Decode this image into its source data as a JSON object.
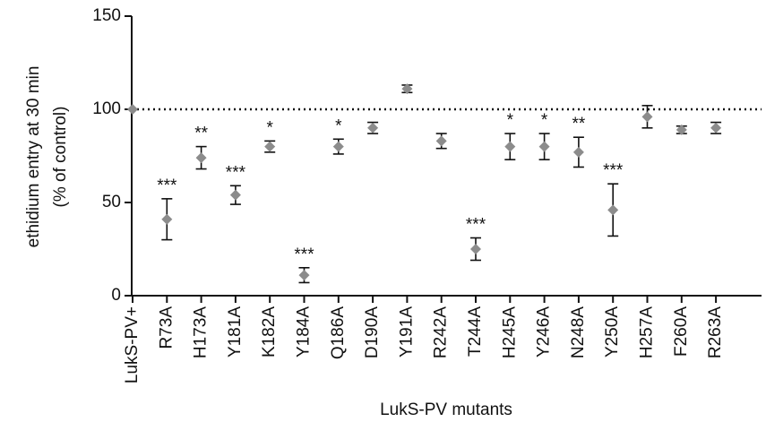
{
  "chart_data": {
    "type": "scatter",
    "y_label": [
      "ethidium entry at 30 min",
      "(% of control)"
    ],
    "x_label": "LukS-PV mutants",
    "categories": [
      "LukS-PV+",
      "R73A",
      "H173A",
      "Y181A",
      "K182A",
      "Y184A",
      "Q186A",
      "D190A",
      "Y191A",
      "R242A",
      "T244A",
      "H245A",
      "Y246A",
      "N248A",
      "Y250A",
      "H257A",
      "F260A",
      "R263A"
    ],
    "values": [
      100,
      41,
      74,
      54,
      80,
      11,
      80,
      90,
      111,
      83,
      25,
      80,
      80,
      77,
      46,
      96,
      89,
      90
    ],
    "errors": [
      null,
      11,
      6,
      5,
      3,
      4,
      4,
      3,
      2,
      4,
      6,
      7,
      7,
      8,
      14,
      6,
      2,
      3
    ],
    "annotations": [
      null,
      "***",
      "**",
      "***",
      "*",
      "***",
      "*",
      null,
      null,
      null,
      "***",
      "*",
      "*",
      "**",
      "***",
      null,
      null,
      null
    ],
    "color": "#8c8c8c",
    "reference_line": 100,
    "ylim": [
      0,
      150
    ],
    "yticks": [
      0,
      50,
      100,
      150
    ]
  }
}
